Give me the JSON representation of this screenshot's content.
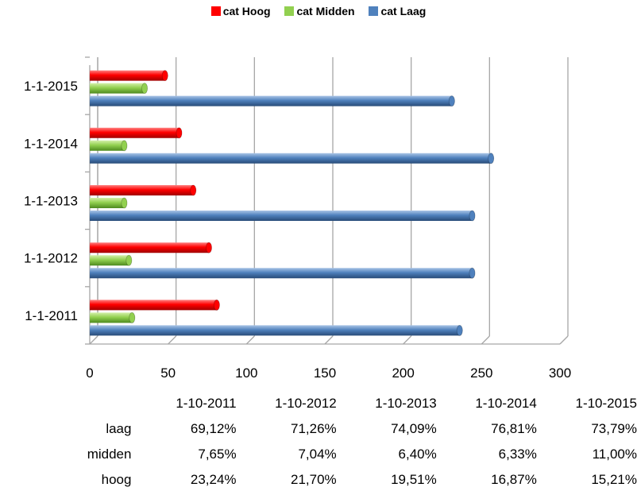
{
  "colors": {
    "hoog": "#ff0000",
    "midden": "#92d050",
    "laag": "#4f81bd",
    "grid": "#a6a6a6"
  },
  "chart_data": {
    "type": "bar",
    "orientation": "horizontal",
    "three_d": true,
    "categories": [
      "1-1-2015",
      "1-1-2014",
      "1-1-2013",
      "1-1-2012",
      "1-1-2011"
    ],
    "series": [
      {
        "name": "cat Hoog",
        "key": "hoog",
        "values": [
          48,
          57,
          66,
          76,
          81
        ]
      },
      {
        "name": "cat Midden",
        "key": "midden",
        "values": [
          35,
          22,
          22,
          25,
          27
        ]
      },
      {
        "name": "cat Laag",
        "key": "laag",
        "values": [
          231,
          256,
          244,
          244,
          236
        ]
      }
    ],
    "x_ticks": [
      "0",
      "50",
      "100",
      "150",
      "200",
      "250",
      "300"
    ],
    "xlim": [
      0,
      300
    ],
    "grid": true,
    "legend_position": "top"
  },
  "table": {
    "columns": [
      "1-10-2011",
      "1-10-2012",
      "1-10-2013",
      "1-10-2014",
      "1-10-2015"
    ],
    "rows": [
      {
        "label": "laag",
        "values": [
          "69,12%",
          "71,26%",
          "74,09%",
          "76,81%",
          "73,79%"
        ]
      },
      {
        "label": "midden",
        "values": [
          "7,65%",
          "7,04%",
          "6,40%",
          "6,33%",
          "11,00%"
        ]
      },
      {
        "label": "hoog",
        "values": [
          "23,24%",
          "21,70%",
          "19,51%",
          "16,87%",
          "15,21%"
        ]
      }
    ]
  }
}
